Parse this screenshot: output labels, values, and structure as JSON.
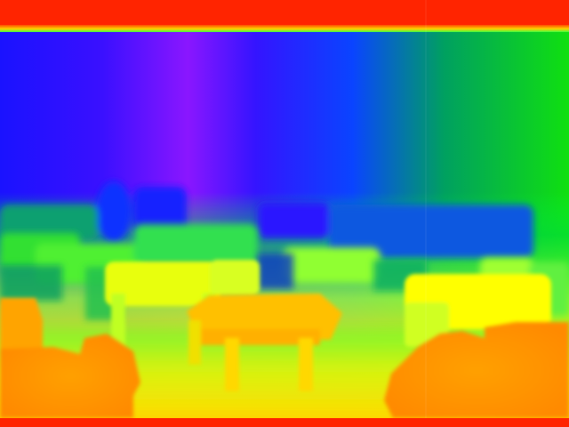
{
  "image": {
    "kind": "depth-map",
    "colormap": [
      "#ff1a00",
      "#ff7a00",
      "#ffd000",
      "#ffff00",
      "#a6ff2a",
      "#18e018",
      "#00c0a0",
      "#0050ff",
      "#1a12ff",
      "#8a16ff"
    ],
    "near_color": "#ff7a00",
    "far_color": "#1a12ff",
    "farthest_color": "#8a16ff",
    "border_color": "#ff2a00"
  }
}
